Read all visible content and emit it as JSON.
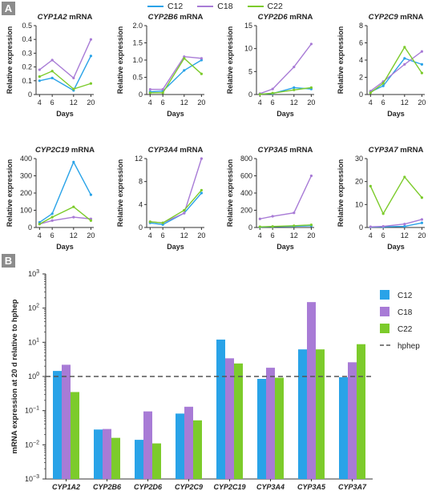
{
  "panel_labels": {
    "a": "A",
    "b": "B"
  },
  "legend": [
    {
      "name": "C12",
      "color": "#29a3e8"
    },
    {
      "name": "C18",
      "color": "#a87bd6"
    },
    {
      "name": "C22",
      "color": "#7ccb2b"
    }
  ],
  "chart_data": [
    {
      "type": "line",
      "title_gene": "CYP1A2",
      "title_suffix": "mRNA",
      "xlabel": "Days",
      "ylabel": "Relative expression",
      "x": [
        4,
        6,
        12,
        20
      ],
      "ylim": [
        0,
        0.5
      ],
      "yticks": [
        "0",
        "0.1",
        "0.2",
        "0.3",
        "0.4",
        "0.5"
      ],
      "series": [
        {
          "name": "C12",
          "values": [
            0.1,
            0.12,
            0.03,
            0.28
          ]
        },
        {
          "name": "C18",
          "values": [
            0.18,
            0.25,
            0.12,
            0.4
          ]
        },
        {
          "name": "C22",
          "values": [
            0.13,
            0.17,
            0.04,
            0.08
          ]
        }
      ]
    },
    {
      "type": "line",
      "title_gene": "CYP2B6",
      "title_suffix": "mRNA",
      "xlabel": "Days",
      "ylabel": "Relative expression",
      "x": [
        4,
        6,
        12,
        20
      ],
      "ylim": [
        0,
        2.0
      ],
      "yticks": [
        "0",
        "0.5",
        "1.0",
        "1.5",
        "2.0"
      ],
      "series": [
        {
          "name": "C12",
          "values": [
            0.08,
            0.1,
            0.7,
            1.0
          ]
        },
        {
          "name": "C18",
          "values": [
            0.15,
            0.15,
            1.1,
            1.05
          ]
        },
        {
          "name": "C22",
          "values": [
            0.05,
            0.05,
            1.05,
            0.6
          ]
        }
      ]
    },
    {
      "type": "line",
      "title_gene": "CYP2D6",
      "title_suffix": "mRNA",
      "xlabel": "Days",
      "ylabel": "Relative expression",
      "x": [
        4,
        6,
        12,
        20
      ],
      "ylim": [
        0,
        15
      ],
      "yticks": [
        "0",
        "5",
        "10",
        "15"
      ],
      "series": [
        {
          "name": "C12",
          "values": [
            0.1,
            0.2,
            1.5,
            1.2
          ]
        },
        {
          "name": "C18",
          "values": [
            0.2,
            1.2,
            6.0,
            11.0
          ]
        },
        {
          "name": "C22",
          "values": [
            0.05,
            0.3,
            1.0,
            1.5
          ]
        }
      ]
    },
    {
      "type": "line",
      "title_gene": "CYP2C9",
      "title_suffix": "mRNA",
      "xlabel": "Days",
      "ylabel": "Relative expression",
      "x": [
        4,
        6,
        12,
        20
      ],
      "ylim": [
        0,
        8
      ],
      "yticks": [
        "0",
        "2",
        "4",
        "6",
        "8"
      ],
      "series": [
        {
          "name": "C12",
          "values": [
            0.3,
            1.0,
            4.2,
            3.5
          ]
        },
        {
          "name": "C18",
          "values": [
            0.4,
            1.5,
            3.5,
            5.0
          ]
        },
        {
          "name": "C22",
          "values": [
            0.2,
            1.3,
            5.5,
            2.5
          ]
        }
      ]
    },
    {
      "type": "line",
      "title_gene": "CYP2C19",
      "title_suffix": "mRNA",
      "xlabel": "Days",
      "ylabel": "Relative expression",
      "x": [
        4,
        6,
        12,
        20
      ],
      "ylim": [
        0,
        400
      ],
      "yticks": [
        "0",
        "100",
        "200",
        "300",
        "400"
      ],
      "series": [
        {
          "name": "C12",
          "values": [
            30,
            80,
            380,
            190
          ]
        },
        {
          "name": "C18",
          "values": [
            20,
            40,
            60,
            50
          ]
        },
        {
          "name": "C22",
          "values": [
            20,
            60,
            120,
            40
          ]
        }
      ]
    },
    {
      "type": "line",
      "title_gene": "CYP3A4",
      "title_suffix": "mRNA",
      "xlabel": "Days",
      "ylabel": "Relative expression",
      "x": [
        4,
        6,
        12,
        20
      ],
      "ylim": [
        0,
        12
      ],
      "yticks": [
        "0",
        "4",
        "8",
        "12"
      ],
      "series": [
        {
          "name": "C12",
          "values": [
            0.8,
            0.5,
            2.5,
            6.0
          ]
        },
        {
          "name": "C18",
          "values": [
            1.0,
            0.8,
            2.5,
            12.0
          ]
        },
        {
          "name": "C22",
          "values": [
            1.0,
            0.8,
            3.0,
            6.5
          ]
        }
      ]
    },
    {
      "type": "line",
      "title_gene": "CYP3A5",
      "title_suffix": "mRNA",
      "xlabel": "Days",
      "ylabel": "Relative expression",
      "x": [
        4,
        6,
        12,
        20
      ],
      "ylim": [
        0,
        800
      ],
      "yticks": [
        "0",
        "200",
        "400",
        "600",
        "800"
      ],
      "series": [
        {
          "name": "C12",
          "values": [
            5,
            10,
            15,
            20
          ]
        },
        {
          "name": "C18",
          "values": [
            100,
            130,
            170,
            600
          ]
        },
        {
          "name": "C22",
          "values": [
            8,
            12,
            20,
            30
          ]
        }
      ]
    },
    {
      "type": "line",
      "title_gene": "CYP3A7",
      "title_suffix": "mRNA",
      "xlabel": "Days",
      "ylabel": "Relative expression",
      "x": [
        4,
        6,
        12,
        20
      ],
      "ylim": [
        0,
        30
      ],
      "yticks": [
        "0",
        "10",
        "20",
        "30"
      ],
      "series": [
        {
          "name": "C12",
          "values": [
            0.2,
            0.3,
            0.5,
            2.0
          ]
        },
        {
          "name": "C18",
          "values": [
            0.3,
            0.5,
            1.5,
            3.5
          ]
        },
        {
          "name": "C22",
          "values": [
            18,
            6,
            22,
            13
          ]
        }
      ]
    },
    {
      "type": "bar",
      "log_scale": true,
      "ylabel": "mRNA expression at 20 d relative to hphep",
      "categories": [
        "CYP1A2",
        "CYP2B6",
        "CYP2D6",
        "CYP2C9",
        "CYP2C19",
        "CYP3A4",
        "CYP3A5",
        "CYP3A7"
      ],
      "ylim": [
        0.001,
        1000
      ],
      "yticks": [
        {
          "base": "10",
          "exp": "3"
        },
        {
          "base": "10",
          "exp": "2"
        },
        {
          "base": "10",
          "exp": "1"
        },
        {
          "base": "10",
          "exp": "0"
        },
        {
          "base": "10",
          "exp": "−1"
        },
        {
          "base": "10",
          "exp": "−2"
        },
        {
          "base": "10",
          "exp": "−3"
        }
      ],
      "series": [
        {
          "name": "C12",
          "values": [
            1.45,
            0.028,
            0.014,
            0.082,
            12,
            0.85,
            6.2,
            0.95
          ]
        },
        {
          "name": "C18",
          "values": [
            2.2,
            0.029,
            0.095,
            0.13,
            3.4,
            1.8,
            150,
            2.6
          ]
        },
        {
          "name": "C22",
          "values": [
            0.35,
            0.016,
            0.011,
            0.052,
            2.4,
            0.92,
            6.2,
            8.8
          ]
        }
      ],
      "reference_line": {
        "name": "hphep",
        "value": 1,
        "color": "#555555"
      },
      "legend": [
        "C12",
        "C18",
        "C22",
        "hphep"
      ]
    }
  ]
}
